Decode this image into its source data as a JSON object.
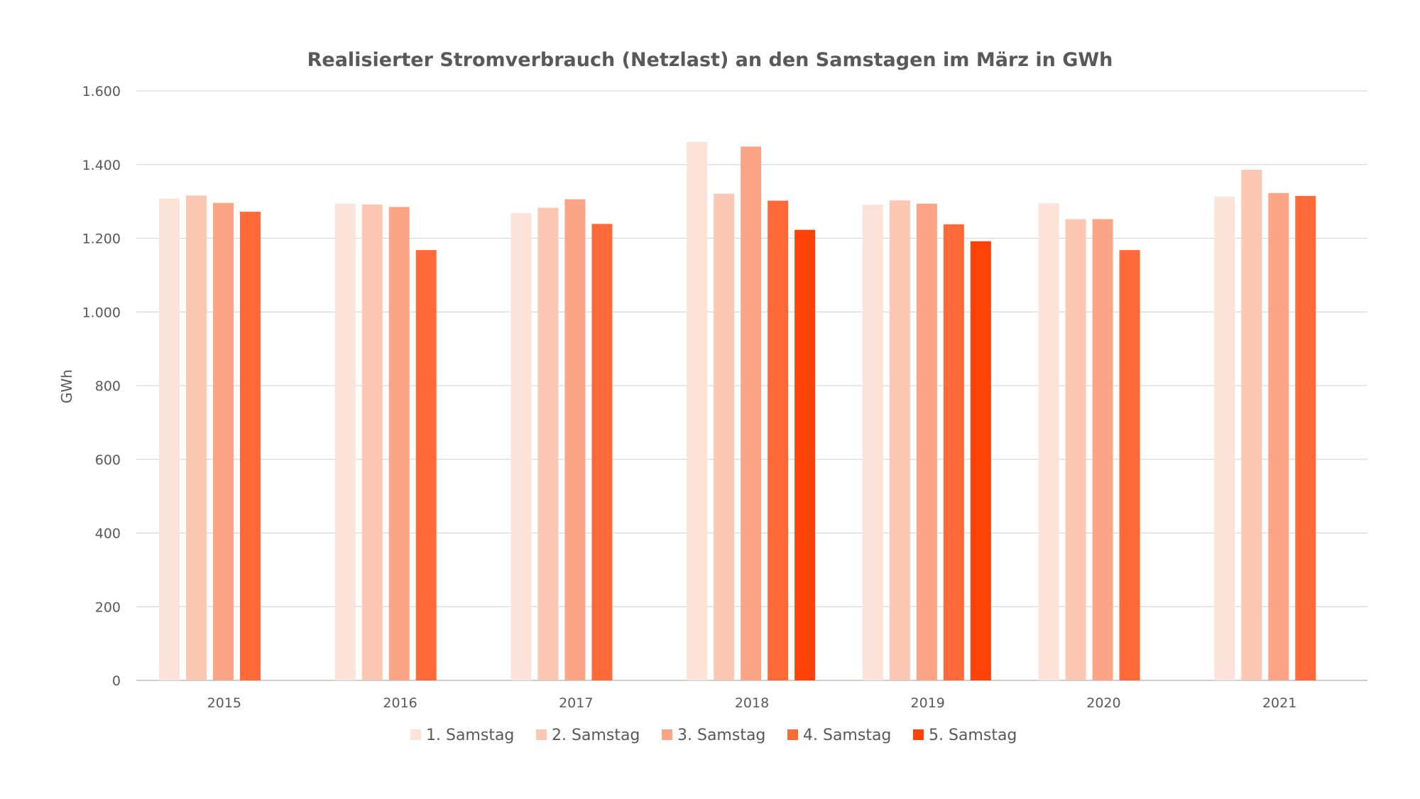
{
  "chart_data": {
    "type": "bar",
    "title": "Realisierter Stromverbrauch (Netzlast) an den Samstagen im März in GWh",
    "xlabel": "",
    "ylabel": "GWh",
    "ylim": [
      0,
      1600
    ],
    "yticks": [
      0,
      200,
      400,
      600,
      800,
      1000,
      1200,
      1400,
      1600
    ],
    "ytick_labels": [
      "0",
      "200",
      "400",
      "600",
      "800",
      "1.000",
      "1.200",
      "1.400",
      "1.600"
    ],
    "grid": true,
    "legend_position": "bottom",
    "categories": [
      "2015",
      "2016",
      "2017",
      "2018",
      "2019",
      "2020",
      "2021"
    ],
    "series": [
      {
        "name": "1. Samstag",
        "color": "#FCE3D9",
        "values": [
          1308,
          1294,
          1268,
          1462,
          1291,
          1295,
          1313
        ]
      },
      {
        "name": "2. Samstag",
        "color": "#FCC7B3",
        "values": [
          1316,
          1292,
          1283,
          1321,
          1303,
          1252,
          1386
        ]
      },
      {
        "name": "3. Samstag",
        "color": "#FCA586",
        "values": [
          1296,
          1285,
          1306,
          1449,
          1294,
          1252,
          1323
        ]
      },
      {
        "name": "4. Samstag",
        "color": "#FF6A38",
        "values": [
          1272,
          1168,
          1239,
          1302,
          1238,
          1168,
          1315
        ]
      },
      {
        "name": "5. Samstag",
        "color": "#FF4208",
        "values": [
          null,
          null,
          null,
          1223,
          1192,
          null,
          null
        ]
      }
    ]
  }
}
